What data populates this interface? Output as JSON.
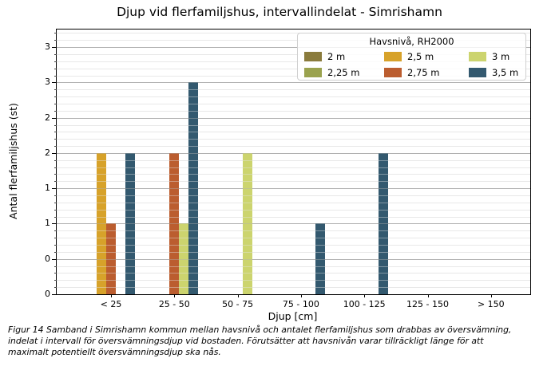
{
  "figure": {
    "caption_lines": [
      "Figur 14 Samband i Simrishamn kommun mellan havsnivå och antalet flerfamiljshus som drabbas av översvämning,",
      "indelat i intervall för översvämningsdjup vid bostaden. Förutsätter att havsnivån varar tillräckligt länge för att",
      "maximalt potentiellt översvämningsdjup ska nås."
    ]
  },
  "chart_data": {
    "type": "bar",
    "title": "Djup vid flerfamiljshus, intervallindelat - Simrishamn",
    "xlabel": "Djup [cm]",
    "ylabel": "Antal flerfamiljshus (st)",
    "categories": [
      "< 25",
      "25 - 50",
      "50 - 75",
      "75 - 100",
      "100 - 125",
      "125 - 150",
      "> 150"
    ],
    "legend": {
      "title": "Havsnivå, RH2000",
      "position": "upper right",
      "columns": 3
    },
    "series": [
      {
        "name": "2 m",
        "color": "#8a7b3c",
        "slot": null,
        "values": [
          0,
          0,
          0,
          0,
          0,
          0,
          0
        ]
      },
      {
        "name": "2,25 m",
        "color": "#9aa24e",
        "slot": 0,
        "values": [
          0,
          0,
          0,
          0,
          0,
          0,
          0
        ]
      },
      {
        "name": "2,5 m",
        "color": "#d7a22a",
        "slot": 1,
        "values": [
          2,
          0,
          0,
          0,
          0,
          0,
          0
        ]
      },
      {
        "name": "2,75 m",
        "color": "#bb5d2f",
        "slot": 2,
        "values": [
          1,
          2,
          0,
          0,
          0,
          0,
          0
        ]
      },
      {
        "name": "3 m",
        "color": "#ccd46e",
        "slot": 3,
        "values": [
          0,
          1,
          2,
          0,
          0,
          0,
          0
        ]
      },
      {
        "name": "3,5 m",
        "color": "#33596f",
        "slot": 4,
        "values": [
          2,
          3,
          0,
          1,
          2,
          0,
          0
        ]
      }
    ],
    "ylim": [
      0,
      3.75
    ],
    "ytick_major_step": 0.5,
    "ytick_minor_step": 0.1,
    "ytick_labels_bottom_to_top": [
      "0",
      "0",
      "1",
      "1",
      "2",
      "2",
      "3",
      "3"
    ],
    "grid": "horizontal"
  }
}
